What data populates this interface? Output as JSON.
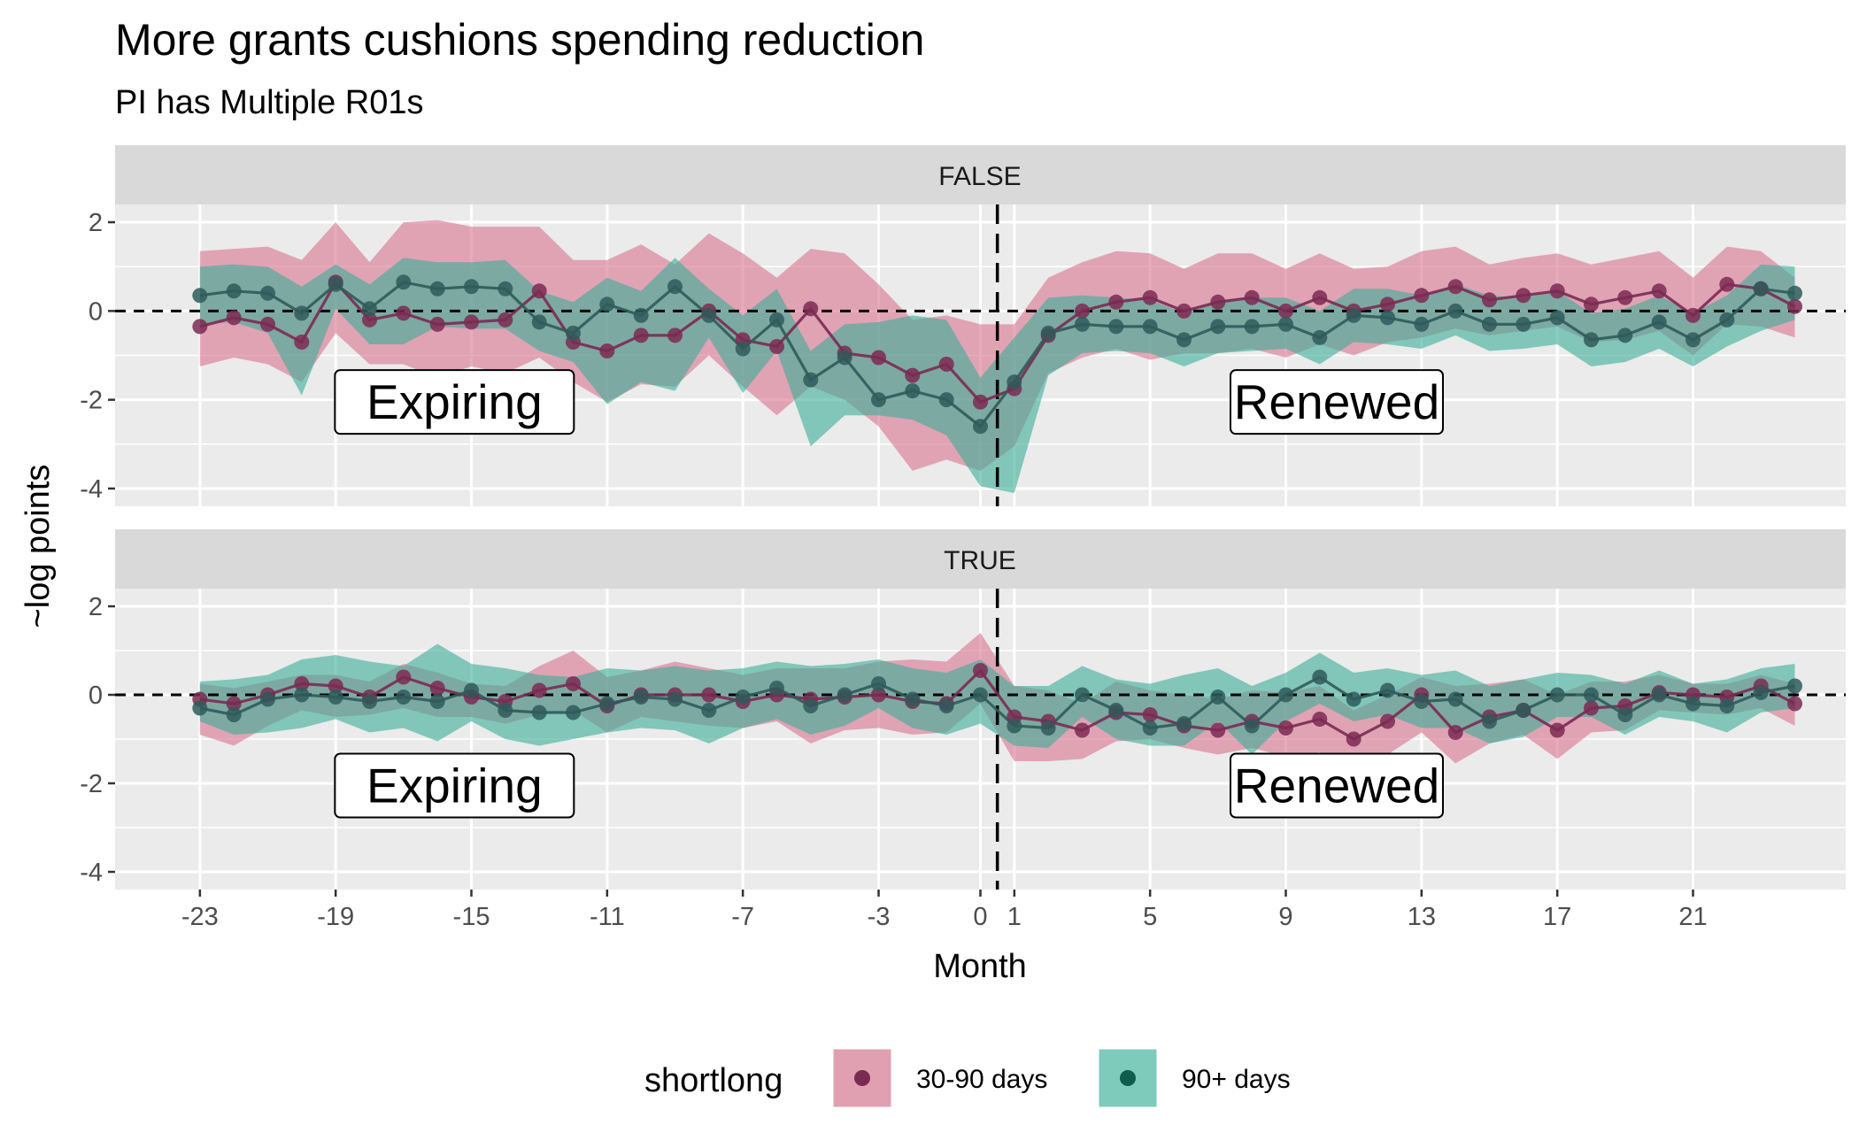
{
  "chart_data": {
    "type": "line",
    "title": "More grants cushions spending reduction",
    "subtitle": "PI has Multiple R01s",
    "xlabel": "Month",
    "ylabel": "~log points",
    "xlim": [
      -25.5,
      25.5
    ],
    "ylim": [
      -4.4,
      2.4
    ],
    "x_ticks": [
      -23,
      -19,
      -15,
      -11,
      -7,
      -3,
      0,
      1,
      5,
      9,
      13,
      17,
      21
    ],
    "x_tick_labels": [
      "-23",
      "-19",
      "-15",
      "-11",
      "-7",
      "-3",
      "0",
      "1",
      "5",
      "9",
      "13",
      "17",
      "21"
    ],
    "y_ticks": [
      2,
      0,
      -2,
      -4
    ],
    "y_tick_labels": [
      "2",
      "0",
      "-2",
      "-4"
    ],
    "vline_x": 0.5,
    "hline_y": 0,
    "grid": true,
    "legend": {
      "title": "shortlong",
      "position": "bottom",
      "items": [
        {
          "label": "30-90 days",
          "fill": "#e0a0b2",
          "point": "#7b2a52"
        },
        {
          "label": "90+ days",
          "fill": "#7ecbbb",
          "point": "#0d5e4c"
        }
      ]
    },
    "colors": {
      "panel_bg": "#ebebeb",
      "strip_bg": "#d9d9d9",
      "ribbon_a": "#d9738f",
      "ribbon_b": "#3aae97",
      "line_a": "#7b2a52",
      "line_b": "#2f5b5a",
      "point_a": "#7b2a52",
      "point_b": "#2f5b5a"
    },
    "x": [
      -23,
      -22,
      -21,
      -20,
      -19,
      -18,
      -17,
      -16,
      -15,
      -14,
      -13,
      -12,
      -11,
      -10,
      -9,
      -8,
      -7,
      -6,
      -5,
      -4,
      -3,
      -2,
      -1,
      0,
      1,
      2,
      3,
      4,
      5,
      6,
      7,
      8,
      9,
      10,
      11,
      12,
      13,
      14,
      15,
      16,
      17,
      18,
      19,
      20,
      21,
      22,
      23,
      24
    ],
    "panels": [
      {
        "label": "FALSE",
        "annotations": [
          {
            "text": "Expiring",
            "x": -15.5,
            "y": -2.05
          },
          {
            "text": "Renewed",
            "x": 10.5,
            "y": -2.05
          }
        ],
        "series": [
          {
            "name": "30-90 days",
            "y": [
              -0.35,
              -0.15,
              -0.3,
              -0.7,
              0.65,
              -0.2,
              -0.05,
              -0.3,
              -0.25,
              -0.2,
              0.45,
              -0.7,
              -0.9,
              -0.55,
              -0.55,
              0.0,
              -0.65,
              -0.8,
              0.05,
              -0.95,
              -1.05,
              -1.45,
              -1.2,
              -2.05,
              -1.75,
              -0.55,
              0.0,
              0.2,
              0.3,
              0.0,
              0.2,
              0.3,
              0.0,
              0.3,
              0.0,
              0.15,
              0.35,
              0.55,
              0.25,
              0.35,
              0.45,
              0.15,
              0.3,
              0.45,
              -0.1,
              0.6,
              0.5,
              0.1
            ],
            "high": [
              1.35,
              1.4,
              1.45,
              1.15,
              2.0,
              1.1,
              2.0,
              2.05,
              1.9,
              1.9,
              1.9,
              1.15,
              1.15,
              1.5,
              1.05,
              1.75,
              1.3,
              0.75,
              1.4,
              1.3,
              0.6,
              -0.2,
              -0.1,
              -0.3,
              -0.3,
              0.75,
              1.1,
              1.35,
              1.3,
              0.95,
              1.3,
              1.3,
              0.95,
              1.3,
              0.95,
              1.0,
              1.35,
              1.45,
              1.05,
              1.2,
              1.3,
              1.05,
              1.2,
              1.35,
              0.75,
              1.45,
              1.35,
              0.75
            ],
            "low": [
              -1.25,
              -1.05,
              -1.2,
              -1.6,
              -0.5,
              -1.2,
              -1.2,
              -1.5,
              -1.25,
              -1.4,
              -1.05,
              -1.6,
              -2.05,
              -1.65,
              -1.7,
              -1.0,
              -1.7,
              -2.35,
              -1.7,
              -2.0,
              -2.6,
              -3.6,
              -3.35,
              -3.6,
              -3.05,
              -1.4,
              -1.05,
              -0.85,
              -1.1,
              -0.95,
              -0.95,
              -0.85,
              -1.05,
              -0.75,
              -1.0,
              -0.7,
              -0.6,
              -0.4,
              -0.55,
              -0.45,
              -0.35,
              -0.7,
              -0.65,
              -0.45,
              -1.0,
              -0.3,
              -0.35,
              -0.6
            ]
          },
          {
            "name": "90+ days",
            "y": [
              0.35,
              0.45,
              0.4,
              -0.05,
              0.6,
              0.05,
              0.65,
              0.5,
              0.55,
              0.5,
              -0.25,
              -0.5,
              0.15,
              -0.1,
              0.55,
              -0.1,
              -0.85,
              -0.2,
              -1.55,
              -1.05,
              -2.0,
              -1.8,
              -2.0,
              -2.6,
              -1.6,
              -0.5,
              -0.3,
              -0.35,
              -0.35,
              -0.65,
              -0.35,
              -0.35,
              -0.3,
              -0.6,
              -0.1,
              -0.15,
              -0.3,
              0.0,
              -0.3,
              -0.3,
              -0.15,
              -0.65,
              -0.55,
              -0.25,
              -0.65,
              -0.2,
              0.5,
              0.4
            ],
            "high": [
              1.0,
              1.05,
              1.0,
              0.55,
              1.05,
              0.6,
              1.2,
              1.1,
              1.1,
              1.15,
              0.45,
              0.2,
              0.75,
              0.45,
              1.2,
              0.5,
              -0.1,
              0.5,
              -0.9,
              -0.3,
              -0.25,
              -0.1,
              -0.2,
              -1.5,
              -0.6,
              0.3,
              0.35,
              0.3,
              0.25,
              -0.05,
              0.25,
              0.3,
              0.3,
              0.0,
              0.5,
              0.5,
              0.35,
              0.6,
              0.35,
              0.3,
              0.45,
              -0.05,
              0.05,
              0.35,
              -0.05,
              0.35,
              1.05,
              1.0
            ],
            "low": [
              -0.3,
              -0.25,
              -0.5,
              -1.9,
              0.05,
              -0.75,
              -0.75,
              -0.35,
              -0.4,
              -0.4,
              -0.9,
              -1.15,
              -2.1,
              -1.6,
              -1.8,
              -0.6,
              -1.85,
              -0.9,
              -3.05,
              -2.35,
              -2.35,
              -2.45,
              -2.8,
              -3.95,
              -4.1,
              -1.45,
              -0.95,
              -0.9,
              -0.95,
              -1.25,
              -0.95,
              -0.9,
              -0.85,
              -1.2,
              -0.7,
              -0.75,
              -0.85,
              -0.55,
              -0.9,
              -0.85,
              -0.75,
              -1.25,
              -1.15,
              -0.85,
              -1.25,
              -0.8,
              -0.45,
              -0.2
            ]
          }
        ]
      },
      {
        "label": "TRUE",
        "annotations": [
          {
            "text": "Expiring",
            "x": -15.5,
            "y": -2.05
          },
          {
            "text": "Renewed",
            "x": 10.5,
            "y": -2.05
          }
        ],
        "series": [
          {
            "name": "30-90 days",
            "y": [
              -0.1,
              -0.2,
              0.0,
              0.25,
              0.2,
              -0.05,
              0.4,
              0.15,
              -0.05,
              -0.15,
              0.1,
              0.25,
              -0.25,
              0.0,
              0.0,
              0.0,
              -0.15,
              0.0,
              -0.1,
              -0.05,
              0.0,
              -0.15,
              -0.2,
              0.55,
              -0.5,
              -0.6,
              -0.8,
              -0.4,
              -0.45,
              -0.7,
              -0.8,
              -0.6,
              -0.75,
              -0.55,
              -1.0,
              -0.6,
              0.0,
              -0.85,
              -0.5,
              -0.35,
              -0.8,
              -0.3,
              -0.25,
              0.05,
              0.0,
              -0.05,
              0.2,
              -0.2
            ],
            "high": [
              0.25,
              0.15,
              0.3,
              0.45,
              0.45,
              0.3,
              0.7,
              0.5,
              0.25,
              0.2,
              0.65,
              1.0,
              0.4,
              0.55,
              0.75,
              0.6,
              0.45,
              0.6,
              0.6,
              0.6,
              0.75,
              0.8,
              0.75,
              1.4,
              0.2,
              0.1,
              -0.2,
              0.3,
              0.1,
              0.0,
              -0.1,
              0.1,
              0.05,
              0.2,
              -0.35,
              0.0,
              0.4,
              0.2,
              0.25,
              0.35,
              0.0,
              0.3,
              0.3,
              0.45,
              0.25,
              0.25,
              0.45,
              0.25
            ],
            "low": [
              -0.9,
              -1.15,
              -0.7,
              -0.35,
              -0.5,
              -0.45,
              -0.3,
              -0.5,
              -0.5,
              -0.65,
              -0.45,
              -0.35,
              -0.85,
              -0.5,
              -0.6,
              -0.7,
              -0.75,
              -0.6,
              -1.1,
              -0.8,
              -0.75,
              -0.9,
              -0.85,
              -0.2,
              -1.5,
              -1.5,
              -1.45,
              -1.05,
              -1.0,
              -1.2,
              -1.35,
              -1.2,
              -1.4,
              -1.3,
              -1.65,
              -1.35,
              -0.85,
              -1.55,
              -1.1,
              -0.9,
              -1.45,
              -0.85,
              -0.8,
              -0.35,
              -0.4,
              -0.45,
              -0.3,
              -0.7
            ]
          },
          {
            "name": "90+ days",
            "y": [
              -0.3,
              -0.45,
              -0.1,
              0.0,
              -0.05,
              -0.15,
              -0.05,
              -0.15,
              0.1,
              -0.35,
              -0.4,
              -0.4,
              -0.2,
              -0.05,
              -0.1,
              -0.35,
              -0.05,
              0.15,
              -0.25,
              0.0,
              0.25,
              -0.1,
              -0.25,
              0.0,
              -0.7,
              -0.75,
              0.0,
              -0.35,
              -0.75,
              -0.65,
              -0.05,
              -0.7,
              0.0,
              0.4,
              -0.1,
              0.1,
              -0.15,
              -0.1,
              -0.6,
              -0.35,
              0.0,
              0.0,
              -0.45,
              0.0,
              -0.2,
              -0.25,
              0.05,
              0.2
            ],
            "high": [
              0.3,
              0.35,
              0.45,
              0.8,
              0.9,
              0.75,
              0.65,
              1.15,
              0.7,
              0.6,
              0.45,
              0.4,
              0.6,
              0.55,
              0.65,
              0.55,
              0.6,
              0.75,
              0.65,
              0.7,
              0.8,
              0.6,
              0.5,
              0.8,
              0.2,
              0.2,
              0.65,
              0.35,
              0.25,
              0.45,
              0.6,
              0.2,
              0.5,
              0.95,
              0.5,
              0.6,
              0.45,
              0.55,
              0.2,
              0.35,
              0.5,
              0.45,
              0.25,
              0.55,
              0.25,
              0.35,
              0.6,
              0.7
            ],
            "low": [
              -0.6,
              -0.9,
              -0.85,
              -0.75,
              -0.55,
              -0.85,
              -0.75,
              -1.05,
              -0.6,
              -1.0,
              -1.15,
              -1.0,
              -0.85,
              -0.75,
              -0.8,
              -1.1,
              -0.75,
              -0.55,
              -0.9,
              -0.7,
              -0.3,
              -0.75,
              -0.9,
              -0.65,
              -1.15,
              -1.2,
              -0.5,
              -1.0,
              -1.15,
              -1.15,
              -0.6,
              -1.35,
              -0.6,
              -0.2,
              -0.6,
              -0.45,
              -0.75,
              -0.75,
              -1.1,
              -0.95,
              -0.5,
              -0.5,
              -0.9,
              -0.5,
              -0.6,
              -0.85,
              -0.4,
              -0.3
            ]
          }
        ]
      }
    ]
  }
}
